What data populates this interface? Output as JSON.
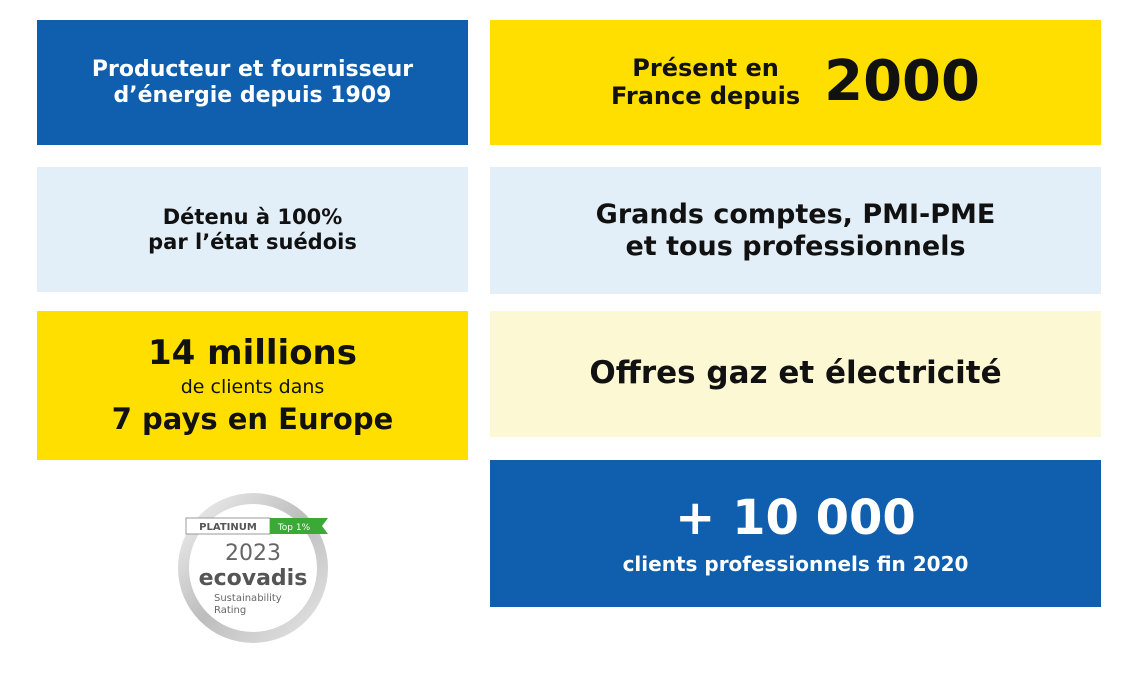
{
  "cards": [
    {
      "lines": [
        "Producteur et fournisseur",
        "d’énergie depuis 1909"
      ]
    },
    {
      "lines": [
        "Présent en",
        "France depuis"
      ],
      "highlight": "2000"
    },
    {
      "lines": [
        "Détenu à 100%",
        "par l’état suédois"
      ]
    },
    {
      "lines": [
        "Grands comptes, PMI-PME",
        "et tous professionnels"
      ]
    },
    {
      "lines": [
        "14 millions",
        "de clients dans",
        "7 pays en Europe"
      ]
    },
    {
      "lines": [
        "Offres gaz et électricité"
      ]
    },
    {
      "lines": [
        "+ 10 000",
        "clients professionnels fin 2020"
      ]
    }
  ],
  "badge": {
    "level": "PLATINUM",
    "rank": "Top 1%",
    "year": "2023",
    "brand": "ecovadis",
    "caption": [
      "Sustainability",
      "Rating"
    ]
  }
}
